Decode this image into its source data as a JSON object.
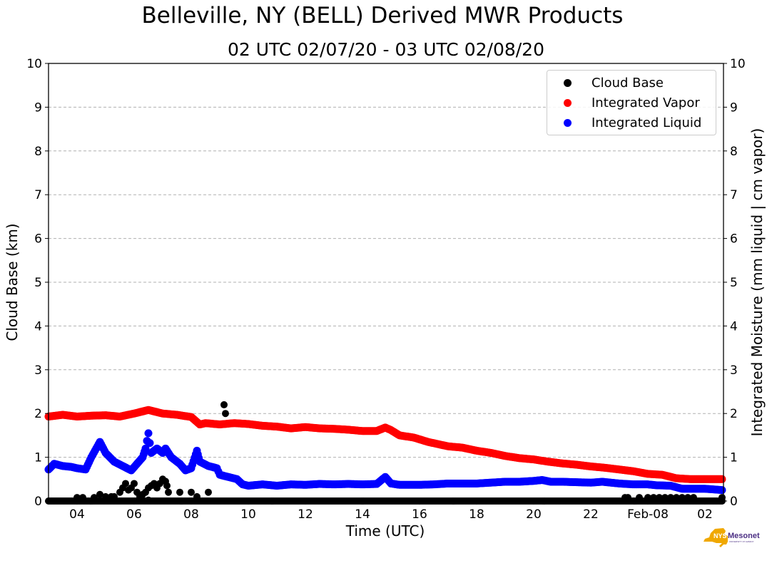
{
  "chart_data": {
    "type": "scatter",
    "title": "Belleville, NY (BELL) Derived MWR Products",
    "subtitle": "02 UTC 02/07/20 - 03 UTC 02/08/20",
    "xlabel": "Time (UTC)",
    "ylabel_left": "Cloud Base (km)",
    "ylabel_right": "Integrated Moisture (mm liquid | cm vapor)",
    "x_units": "hours since 00 UTC 02/07/20",
    "xlim": [
      3.0,
      26.65
    ],
    "ylim_left": [
      0,
      10
    ],
    "ylim_right": [
      0,
      10
    ],
    "grid": "horizontal dashed",
    "legend_position": "top-right",
    "x_ticks": [
      {
        "value": 4,
        "label": "04"
      },
      {
        "value": 6,
        "label": "06"
      },
      {
        "value": 8,
        "label": "08"
      },
      {
        "value": 10,
        "label": "10"
      },
      {
        "value": 12,
        "label": "12"
      },
      {
        "value": 14,
        "label": "14"
      },
      {
        "value": 16,
        "label": "16"
      },
      {
        "value": 18,
        "label": "18"
      },
      {
        "value": 20,
        "label": "20"
      },
      {
        "value": 22,
        "label": "22"
      },
      {
        "value": 24,
        "label": "Feb-08"
      },
      {
        "value": 26,
        "label": "02"
      }
    ],
    "y_ticks": [
      "0",
      "1",
      "2",
      "3",
      "4",
      "5",
      "6",
      "7",
      "8",
      "9",
      "10"
    ],
    "series": [
      {
        "name": "Cloud Base",
        "color": "#000000",
        "points": [
          [
            4.0,
            0.08
          ],
          [
            4.2,
            0.08
          ],
          [
            4.6,
            0.08
          ],
          [
            4.8,
            0.15
          ],
          [
            5.0,
            0.1
          ],
          [
            5.2,
            0.1
          ],
          [
            5.3,
            0.1
          ],
          [
            5.5,
            0.2
          ],
          [
            5.6,
            0.3
          ],
          [
            5.7,
            0.4
          ],
          [
            5.8,
            0.25
          ],
          [
            5.9,
            0.3
          ],
          [
            6.0,
            0.4
          ],
          [
            6.1,
            0.2
          ],
          [
            6.2,
            0.1
          ],
          [
            6.3,
            0.15
          ],
          [
            6.4,
            0.2
          ],
          [
            6.5,
            0.3
          ],
          [
            6.6,
            0.35
          ],
          [
            6.7,
            0.4
          ],
          [
            6.8,
            0.3
          ],
          [
            6.9,
            0.4
          ],
          [
            7.0,
            0.5
          ],
          [
            7.1,
            0.45
          ],
          [
            7.15,
            0.35
          ],
          [
            7.2,
            0.2
          ],
          [
            7.6,
            0.2
          ],
          [
            8.0,
            0.2
          ],
          [
            8.2,
            0.1
          ],
          [
            8.6,
            0.2
          ],
          [
            9.15,
            2.2
          ],
          [
            9.2,
            2.0
          ],
          [
            6.5,
            0.02
          ],
          [
            23.2,
            0.08
          ],
          [
            23.3,
            0.08
          ],
          [
            23.7,
            0.08
          ],
          [
            24.0,
            0.08
          ],
          [
            24.2,
            0.08
          ],
          [
            24.4,
            0.08
          ],
          [
            24.6,
            0.08
          ],
          [
            24.8,
            0.08
          ],
          [
            25.0,
            0.08
          ],
          [
            25.2,
            0.08
          ],
          [
            25.4,
            0.08
          ],
          [
            25.6,
            0.08
          ],
          [
            26.6,
            0.08
          ]
        ],
        "baseline": 0.0
      },
      {
        "name": "Integrated Vapor",
        "color": "#ff0000",
        "points": [
          [
            3.0,
            1.93
          ],
          [
            3.5,
            1.97
          ],
          [
            4.0,
            1.93
          ],
          [
            4.5,
            1.95
          ],
          [
            5.0,
            1.96
          ],
          [
            5.5,
            1.93
          ],
          [
            6.0,
            2.0
          ],
          [
            6.5,
            2.08
          ],
          [
            7.0,
            2.0
          ],
          [
            7.5,
            1.97
          ],
          [
            8.0,
            1.92
          ],
          [
            8.3,
            1.75
          ],
          [
            8.5,
            1.78
          ],
          [
            9.0,
            1.75
          ],
          [
            9.5,
            1.78
          ],
          [
            10.0,
            1.76
          ],
          [
            10.5,
            1.72
          ],
          [
            11.0,
            1.7
          ],
          [
            11.5,
            1.66
          ],
          [
            12.0,
            1.69
          ],
          [
            12.5,
            1.66
          ],
          [
            13.0,
            1.65
          ],
          [
            13.5,
            1.63
          ],
          [
            14.0,
            1.6
          ],
          [
            14.5,
            1.6
          ],
          [
            14.8,
            1.68
          ],
          [
            15.0,
            1.62
          ],
          [
            15.3,
            1.5
          ],
          [
            15.8,
            1.45
          ],
          [
            16.3,
            1.35
          ],
          [
            17.0,
            1.25
          ],
          [
            17.5,
            1.22
          ],
          [
            18.0,
            1.15
          ],
          [
            18.5,
            1.1
          ],
          [
            19.0,
            1.03
          ],
          [
            19.5,
            0.98
          ],
          [
            20.0,
            0.95
          ],
          [
            20.5,
            0.9
          ],
          [
            21.0,
            0.86
          ],
          [
            21.5,
            0.83
          ],
          [
            22.0,
            0.79
          ],
          [
            22.5,
            0.76
          ],
          [
            23.0,
            0.72
          ],
          [
            23.5,
            0.68
          ],
          [
            24.0,
            0.62
          ],
          [
            24.5,
            0.6
          ],
          [
            25.0,
            0.52
          ],
          [
            25.5,
            0.5
          ],
          [
            26.0,
            0.5
          ],
          [
            26.6,
            0.5
          ]
        ]
      },
      {
        "name": "Integrated Liquid",
        "color": "#0000ff",
        "points": [
          [
            3.0,
            0.72
          ],
          [
            3.2,
            0.85
          ],
          [
            3.5,
            0.8
          ],
          [
            3.8,
            0.78
          ],
          [
            4.0,
            0.75
          ],
          [
            4.3,
            0.72
          ],
          [
            4.5,
            1.0
          ],
          [
            4.8,
            1.35
          ],
          [
            5.0,
            1.1
          ],
          [
            5.3,
            0.9
          ],
          [
            5.6,
            0.8
          ],
          [
            5.9,
            0.7
          ],
          [
            6.1,
            0.85
          ],
          [
            6.3,
            1.0
          ],
          [
            6.4,
            1.2
          ],
          [
            6.5,
            1.55
          ],
          [
            6.6,
            1.1
          ],
          [
            6.8,
            1.2
          ],
          [
            7.0,
            1.1
          ],
          [
            7.1,
            1.2
          ],
          [
            7.3,
            1.0
          ],
          [
            7.6,
            0.85
          ],
          [
            7.8,
            0.7
          ],
          [
            8.0,
            0.75
          ],
          [
            8.2,
            1.15
          ],
          [
            8.3,
            0.9
          ],
          [
            8.6,
            0.8
          ],
          [
            8.9,
            0.75
          ],
          [
            9.0,
            0.6
          ],
          [
            9.3,
            0.55
          ],
          [
            9.6,
            0.5
          ],
          [
            9.8,
            0.38
          ],
          [
            10.0,
            0.35
          ],
          [
            10.5,
            0.38
          ],
          [
            11.0,
            0.35
          ],
          [
            11.5,
            0.38
          ],
          [
            12.0,
            0.37
          ],
          [
            12.5,
            0.39
          ],
          [
            13.0,
            0.38
          ],
          [
            13.5,
            0.39
          ],
          [
            14.0,
            0.38
          ],
          [
            14.5,
            0.39
          ],
          [
            14.8,
            0.55
          ],
          [
            15.0,
            0.4
          ],
          [
            15.3,
            0.37
          ],
          [
            16.0,
            0.37
          ],
          [
            16.5,
            0.38
          ],
          [
            17.0,
            0.4
          ],
          [
            17.5,
            0.4
          ],
          [
            18.0,
            0.4
          ],
          [
            18.5,
            0.42
          ],
          [
            19.0,
            0.44
          ],
          [
            19.5,
            0.44
          ],
          [
            20.0,
            0.46
          ],
          [
            20.3,
            0.48
          ],
          [
            20.6,
            0.44
          ],
          [
            21.0,
            0.44
          ],
          [
            21.5,
            0.43
          ],
          [
            22.0,
            0.42
          ],
          [
            22.4,
            0.44
          ],
          [
            22.7,
            0.42
          ],
          [
            23.0,
            0.4
          ],
          [
            23.5,
            0.38
          ],
          [
            24.0,
            0.38
          ],
          [
            24.3,
            0.36
          ],
          [
            24.8,
            0.35
          ],
          [
            25.2,
            0.28
          ],
          [
            25.6,
            0.28
          ],
          [
            26.0,
            0.28
          ],
          [
            26.6,
            0.25
          ]
        ]
      }
    ]
  },
  "logo": {
    "text_main": "NYS",
    "text_brand": "Mesonet",
    "text_sub": "UNIVERSITY AT ALBANY"
  }
}
